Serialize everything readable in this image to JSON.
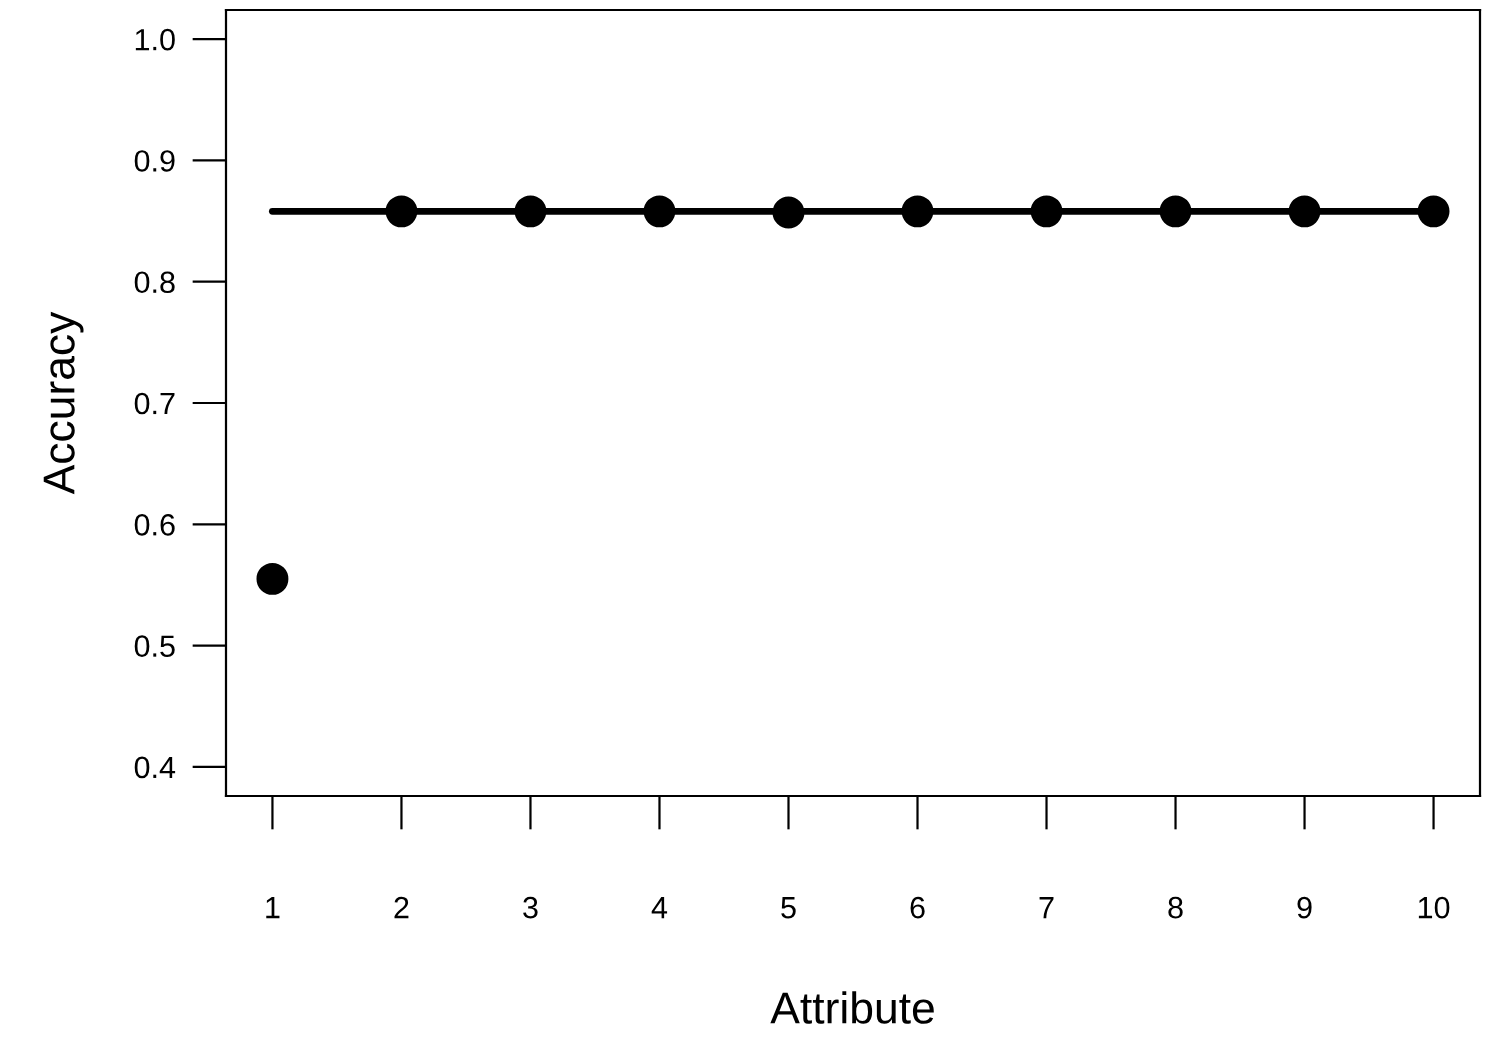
{
  "chart_data": {
    "type": "scatter",
    "xlabel": "Attribute",
    "ylabel": "Accuracy",
    "x": [
      1,
      2,
      3,
      4,
      5,
      6,
      7,
      8,
      9,
      10
    ],
    "series": [
      {
        "color": "#000000",
        "values": [
          0.555,
          0.858,
          0.858,
          0.858,
          0.857,
          0.858,
          0.858,
          0.858,
          0.858,
          0.858
        ]
      },
      {
        "type": "line",
        "marker": "none",
        "color": "#000000",
        "x": [
          1,
          10
        ],
        "values": [
          0.858,
          0.858
        ]
      }
    ],
    "marker": "circle",
    "xlim": [
      0.64,
      10.36
    ],
    "ylim": [
      0.376,
      1.024
    ],
    "xticks": [
      1,
      2,
      3,
      4,
      5,
      6,
      7,
      8,
      9,
      10
    ],
    "yticks": [
      0.4,
      0.5,
      0.6,
      0.7,
      0.8,
      0.9,
      {
        "value": 1,
        "label": "1.0"
      }
    ],
    "grid": false,
    "legend": false
  }
}
